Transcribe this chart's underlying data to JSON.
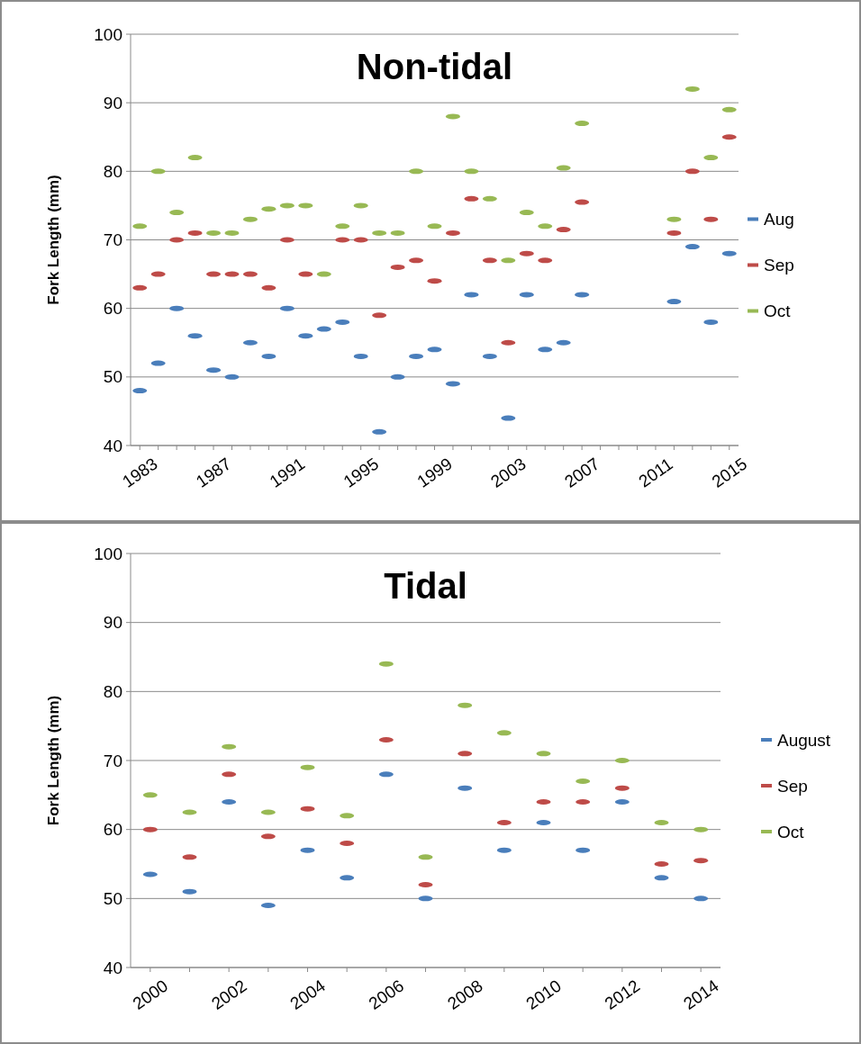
{
  "chart_data": [
    {
      "type": "scatter",
      "title": "Non-tidal",
      "ylabel": "Fork Length (mm)",
      "categories": [
        "1983",
        null,
        null,
        null,
        "1987",
        null,
        null,
        null,
        "1991",
        null,
        null,
        null,
        "1995",
        null,
        null,
        null,
        "1999",
        null,
        null,
        null,
        "2003",
        null,
        null,
        null,
        "2007",
        null,
        null,
        null,
        "2011",
        null,
        null,
        null,
        "2015"
      ],
      "series": [
        {
          "name": "Aug",
          "color": "#4a7ebb",
          "values": [
            48,
            52,
            60,
            56,
            51,
            50,
            55,
            53,
            60,
            56,
            57,
            58,
            53,
            42,
            50,
            53,
            54,
            49,
            62,
            53,
            44,
            62,
            54,
            55,
            62,
            null,
            null,
            null,
            null,
            61,
            69,
            58,
            68
          ]
        },
        {
          "name": "Sep",
          "color": "#be4b48",
          "values": [
            63,
            65,
            70,
            71,
            65,
            65,
            65,
            63,
            70,
            65,
            null,
            70,
            70,
            59,
            66,
            67,
            64,
            71,
            76,
            67,
            55,
            68,
            67,
            71.5,
            75.5,
            null,
            null,
            null,
            null,
            71,
            80,
            73,
            85
          ]
        },
        {
          "name": "Oct",
          "color": "#98b954",
          "values": [
            72,
            80,
            74,
            82,
            71,
            71,
            73,
            74.5,
            75,
            75,
            65,
            72,
            75,
            71,
            71,
            80,
            72,
            88,
            80,
            76,
            67,
            74,
            72,
            80.5,
            87,
            null,
            null,
            null,
            null,
            73,
            92,
            82,
            89
          ]
        }
      ],
      "ylim": [
        40,
        100
      ],
      "yticks": [
        40,
        50,
        60,
        70,
        80,
        90,
        100
      ],
      "grid": "y",
      "legend": "right"
    },
    {
      "type": "scatter",
      "title": "Tidal",
      "ylabel": "Fork Length (mm)",
      "categories": [
        "2000",
        null,
        "2002",
        null,
        "2004",
        null,
        "2006",
        null,
        "2008",
        null,
        "2010",
        null,
        "2012",
        null,
        "2014"
      ],
      "series": [
        {
          "name": "August",
          "color": "#4a7ebb",
          "values": [
            53.5,
            51,
            64,
            49,
            57,
            53,
            68,
            50,
            66,
            57,
            61,
            57,
            64,
            53,
            50
          ]
        },
        {
          "name": "Sep",
          "color": "#be4b48",
          "values": [
            60,
            56,
            68,
            59,
            63,
            58,
            73,
            52,
            71,
            61,
            64,
            64,
            66,
            55,
            55.5
          ]
        },
        {
          "name": "Oct",
          "color": "#98b954",
          "values": [
            65,
            62.5,
            72,
            62.5,
            69,
            62,
            84,
            56,
            78,
            74,
            71,
            67,
            70,
            61,
            60
          ]
        }
      ],
      "ylim": [
        40,
        100
      ],
      "yticks": [
        40,
        50,
        60,
        70,
        80,
        90,
        100
      ],
      "grid": "y",
      "legend": "right"
    }
  ]
}
